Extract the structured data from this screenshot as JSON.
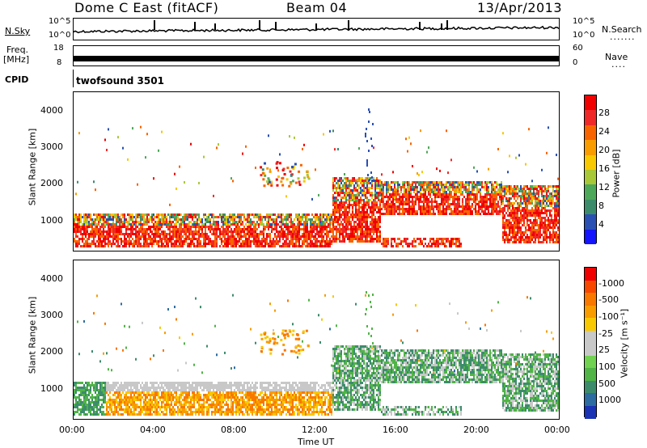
{
  "header": {
    "title": "Dome C East (fitACF)",
    "beam": "Beam 04",
    "date": "13/Apr/2013"
  },
  "top_panels": {
    "nsky_label": "N.Sky",
    "nsearch_label": "N.Search",
    "nsky_top": "10^5",
    "nsky_bottom": "10^0",
    "nsearch_top": "10^5",
    "nsearch_bottom": "10^0",
    "freq_label": "Freq.",
    "freq_unit": "[MHz]",
    "freq_top": "18",
    "freq_bottom": "8",
    "nave_label": "Nave",
    "nave_top": "60",
    "nave_bottom": "0",
    "cpid_label": "CPID",
    "cpid_value": "twofsound 3501"
  },
  "chart_data": [
    {
      "type": "heatmap",
      "name": "power",
      "ylabel": "Slant Range [km]",
      "yticks": [
        1000,
        2000,
        3000,
        4000
      ],
      "ylim": [
        180,
        4500
      ],
      "colorbar_label": "Power [dB]",
      "colorbar_ticks": [
        "4",
        "8",
        "12",
        "16",
        "20",
        "24",
        "28"
      ],
      "colorbar_colors": [
        "#1414ff",
        "#2a50b4",
        "#3c8c6c",
        "#4ea85a",
        "#a8c838",
        "#f8c800",
        "#f89c00",
        "#f86400",
        "#f02828",
        "#f00000"
      ]
    },
    {
      "type": "heatmap",
      "name": "velocity",
      "ylabel": "Slant Range [km]",
      "yticks": [
        1000,
        2000,
        3000,
        4000
      ],
      "ylim": [
        180,
        4500
      ],
      "colorbar_label": "Velocity [m s⁻¹]",
      "colorbar_ticks": [
        "1000",
        "500",
        "100",
        "25",
        "-25",
        "-100",
        "-500",
        "-1000"
      ],
      "colorbar_colors": [
        "#1a32b4",
        "#2c6ca0",
        "#3c8c6c",
        "#50b446",
        "#70d250",
        "#c8c8c8",
        "#c8c8c8",
        "#f8c800",
        "#f89c00",
        "#f87800",
        "#f84800",
        "#f00000"
      ]
    }
  ],
  "time_axis": {
    "label": "Time UT",
    "ticks": [
      "00:00",
      "04:00",
      "08:00",
      "12:00",
      "16:00",
      "20:00",
      "00:00"
    ]
  }
}
